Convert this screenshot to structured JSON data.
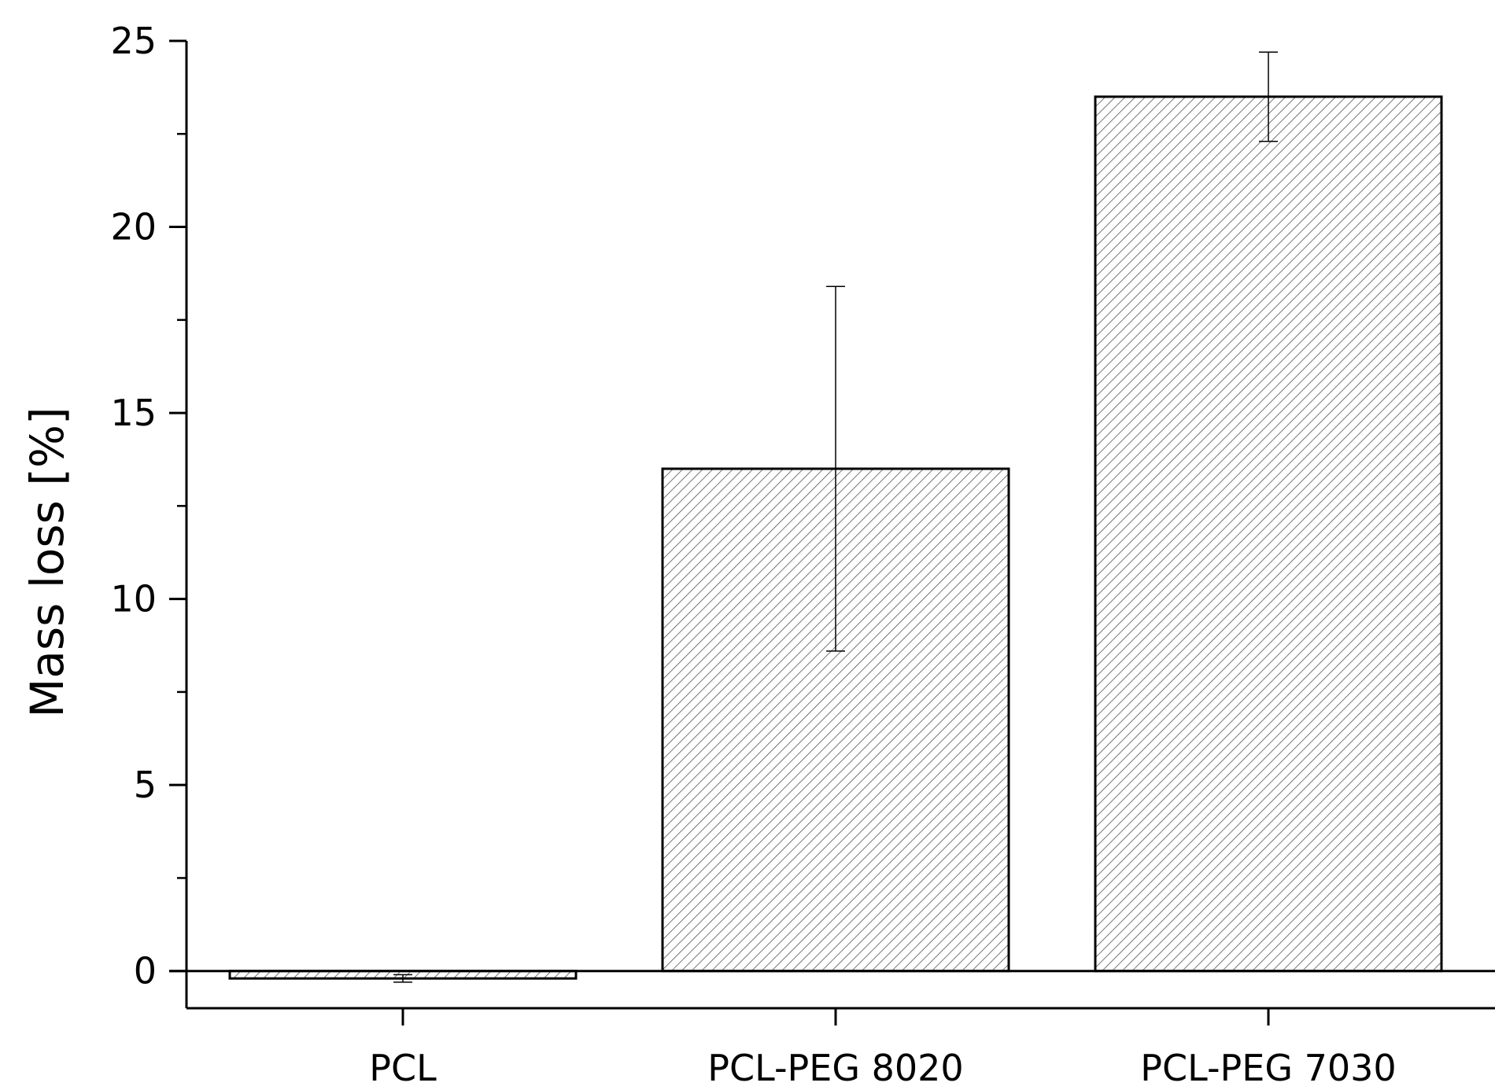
{
  "chart_data": {
    "type": "bar",
    "title": "",
    "xlabel": "",
    "ylabel": "Mass loss [%]",
    "categories": [
      "PCL",
      "PCL-PEG 8020",
      "PCL-PEG 7030"
    ],
    "values": [
      -0.2,
      13.5,
      23.5
    ],
    "error": [
      0.1,
      4.9,
      1.2
    ],
    "ylim": [
      -1,
      25
    ],
    "yticks": [
      0,
      5,
      10,
      15,
      20,
      25
    ],
    "grid": false,
    "legend": "none",
    "bar_pattern": "diagonal-hatch",
    "colors": {
      "bar_fill": "#ffffff",
      "hatch": "#555555",
      "outline": "#000000"
    }
  }
}
